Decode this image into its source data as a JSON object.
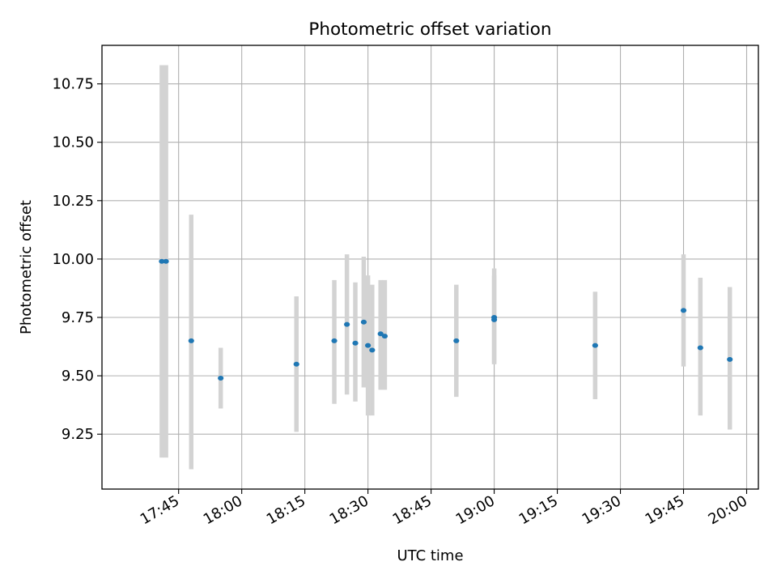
{
  "chart_data": {
    "type": "scatter",
    "title": "Photometric offset variation",
    "xlabel": "UTC time",
    "ylabel": "Photometric offset",
    "x_unit": "UTC time (HH:MM)",
    "xlim": [
      "17:34",
      "20:00"
    ],
    "ylim": [
      9.015,
      10.915
    ],
    "x_ticks": [
      "17:45",
      "18:00",
      "18:15",
      "18:30",
      "18:45",
      "19:00",
      "19:15",
      "19:30",
      "19:45",
      "20:00"
    ],
    "y_ticks": [
      9.25,
      9.5,
      9.75,
      10.0,
      10.25,
      10.5,
      10.75
    ],
    "y_tick_labels": [
      "9.25",
      "9.50",
      "9.75",
      "10.00",
      "10.25",
      "10.50",
      "10.75"
    ],
    "grid": true,
    "point_color": "#1f77b4",
    "errorbar_color": "#d3d3d3",
    "series": [
      {
        "points": [
          {
            "x": "17:41",
            "y": 9.99,
            "ylow": 9.15,
            "yhigh": 10.83
          },
          {
            "x": "17:42",
            "y": 9.99,
            "ylow": 9.15,
            "yhigh": 10.83
          },
          {
            "x": "17:48",
            "y": 9.65,
            "ylow": 9.1,
            "yhigh": 10.19
          },
          {
            "x": "17:55",
            "y": 9.49,
            "ylow": 9.36,
            "yhigh": 9.62
          },
          {
            "x": "18:13",
            "y": 9.55,
            "ylow": 9.26,
            "yhigh": 9.84
          },
          {
            "x": "18:22",
            "y": 9.65,
            "ylow": 9.38,
            "yhigh": 9.91
          },
          {
            "x": "18:25",
            "y": 9.72,
            "ylow": 9.42,
            "yhigh": 10.02
          },
          {
            "x": "18:27",
            "y": 9.64,
            "ylow": 9.39,
            "yhigh": 9.9
          },
          {
            "x": "18:29",
            "y": 9.73,
            "ylow": 9.45,
            "yhigh": 10.01
          },
          {
            "x": "18:30",
            "y": 9.63,
            "ylow": 9.33,
            "yhigh": 9.93
          },
          {
            "x": "18:31",
            "y": 9.61,
            "ylow": 9.33,
            "yhigh": 9.89
          },
          {
            "x": "18:33",
            "y": 9.68,
            "ylow": 9.44,
            "yhigh": 9.91
          },
          {
            "x": "18:34",
            "y": 9.67,
            "ylow": 9.44,
            "yhigh": 9.91
          },
          {
            "x": "18:51",
            "y": 9.65,
            "ylow": 9.41,
            "yhigh": 9.89
          },
          {
            "x": "19:00",
            "y": 9.75,
            "ylow": 9.55,
            "yhigh": 9.96
          },
          {
            "x": "19:00",
            "y": 9.74,
            "ylow": 9.55,
            "yhigh": 9.93
          },
          {
            "x": "19:24",
            "y": 9.63,
            "ylow": 9.4,
            "yhigh": 9.86
          },
          {
            "x": "19:45",
            "y": 9.78,
            "ylow": 9.54,
            "yhigh": 10.02
          },
          {
            "x": "19:49",
            "y": 9.62,
            "ylow": 9.33,
            "yhigh": 9.92
          },
          {
            "x": "19:56",
            "y": 9.57,
            "ylow": 9.27,
            "yhigh": 9.88
          }
        ]
      }
    ]
  }
}
